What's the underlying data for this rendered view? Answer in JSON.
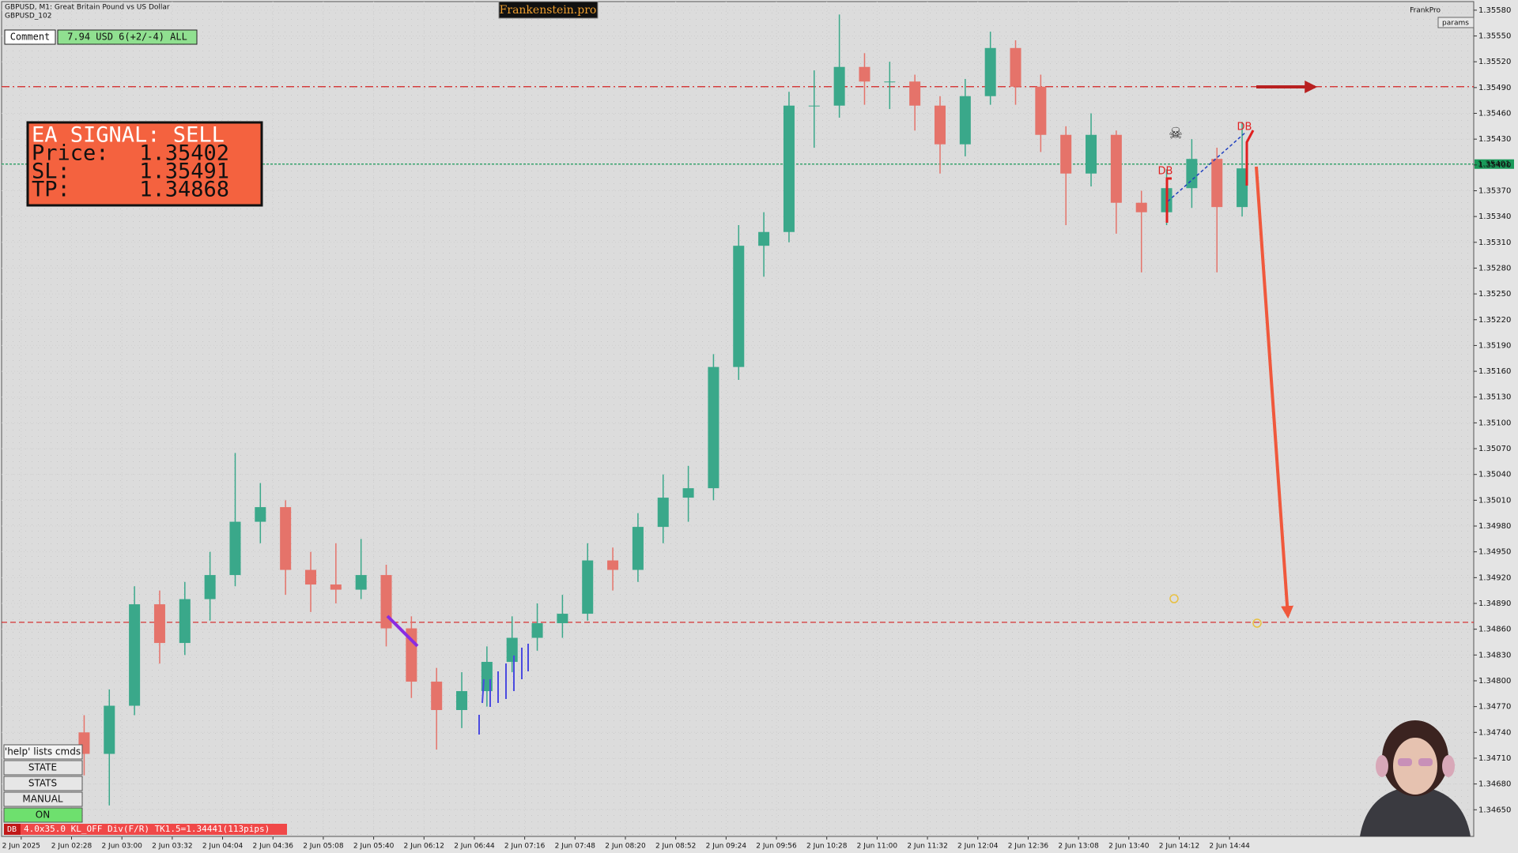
{
  "header": {
    "symbol_line": "GBPUSD, M1:  Great Britain Pound vs US Dollar",
    "account_line": "GBPUSD_102",
    "brand": "Frankenstein.pro",
    "user": "FrankPro",
    "params_button": "params"
  },
  "comment": {
    "label": "Comment",
    "value": "7.94 USD 6(+2/-4) ALL"
  },
  "signal": {
    "title": "EA SIGNAL: SELL",
    "rows": [
      [
        "Price:",
        "1.35402"
      ],
      [
        "SL:",
        "1.35491"
      ],
      [
        "TP:",
        "1.34868"
      ]
    ]
  },
  "buttons": [
    "'help' lists cmds",
    "STATE",
    "STATS",
    "MANUAL",
    "ON"
  ],
  "status": {
    "tag": "DB",
    "text": "4.0x35.0 KL_OFF Div(F/R) TK1.5=1.34441(113pips)"
  },
  "chart_data": {
    "type": "candlestick",
    "grid": true,
    "up_color": "#3aa88a",
    "down_color": "#e5736a",
    "annotations": [
      "DB",
      "DB"
    ],
    "xlim": [
      -3.28,
      55.2
    ],
    "ylim": [
      1.34619,
      1.3559
    ],
    "xticks": [
      {
        "value": -2.5,
        "label": "2 Jun 2025"
      },
      {
        "value": -0.5,
        "label": "2 Jun 02:28"
      },
      {
        "value": 1.5,
        "label": "2 Jun 03:00"
      },
      {
        "value": 3.5,
        "label": "2 Jun 03:32"
      },
      {
        "value": 5.5,
        "label": "2 Jun 04:04"
      },
      {
        "value": 7.5,
        "label": "2 Jun 04:36"
      },
      {
        "value": 9.5,
        "label": "2 Jun 05:08"
      },
      {
        "value": 11.5,
        "label": "2 Jun 05:40"
      },
      {
        "value": 13.5,
        "label": "2 Jun 06:12"
      },
      {
        "value": 15.5,
        "label": "2 Jun 06:44"
      },
      {
        "value": 17.5,
        "label": "2 Jun 07:16"
      },
      {
        "value": 19.5,
        "label": "2 Jun 07:48"
      },
      {
        "value": 21.5,
        "label": "2 Jun 08:20"
      },
      {
        "value": 23.5,
        "label": "2 Jun 08:52"
      },
      {
        "value": 25.5,
        "label": "2 Jun 09:24"
      },
      {
        "value": 27.5,
        "label": "2 Jun 09:56"
      },
      {
        "value": 29.5,
        "label": "2 Jun 10:28"
      },
      {
        "value": 31.5,
        "label": "2 Jun 11:00"
      },
      {
        "value": 33.5,
        "label": "2 Jun 11:32"
      },
      {
        "value": 35.5,
        "label": "2 Jun 12:04"
      },
      {
        "value": 37.5,
        "label": "2 Jun 12:36"
      },
      {
        "value": 39.5,
        "label": "2 Jun 13:08"
      },
      {
        "value": 41.5,
        "label": "2 Jun 13:40"
      },
      {
        "value": 43.5,
        "label": "2 Jun 14:12"
      },
      {
        "value": 45.5,
        "label": "2 Jun 14:44"
      }
    ],
    "yticks": [
      {
        "value": 1.3558,
        "label": "1.35580"
      },
      {
        "value": 1.3555,
        "label": "1.35550"
      },
      {
        "value": 1.3552,
        "label": "1.35520"
      },
      {
        "value": 1.3549,
        "label": "1.35490"
      },
      {
        "value": 1.3546,
        "label": "1.35460"
      },
      {
        "value": 1.3543,
        "label": "1.35430"
      },
      {
        "value": 1.354,
        "label": "1.35400"
      },
      {
        "value": 1.3537,
        "label": "1.35370"
      },
      {
        "value": 1.3534,
        "label": "1.35340"
      },
      {
        "value": 1.3531,
        "label": "1.35310"
      },
      {
        "value": 1.3528,
        "label": "1.35280"
      },
      {
        "value": 1.3525,
        "label": "1.35250"
      },
      {
        "value": 1.3522,
        "label": "1.35220"
      },
      {
        "value": 1.3519,
        "label": "1.35190"
      },
      {
        "value": 1.3516,
        "label": "1.35160"
      },
      {
        "value": 1.3513,
        "label": "1.35130"
      },
      {
        "value": 1.351,
        "label": "1.35100"
      },
      {
        "value": 1.3507,
        "label": "1.35070"
      },
      {
        "value": 1.3504,
        "label": "1.35040"
      },
      {
        "value": 1.3501,
        "label": "1.35010"
      },
      {
        "value": 1.3498,
        "label": "1.34980"
      },
      {
        "value": 1.3495,
        "label": "1.34950"
      },
      {
        "value": 1.3492,
        "label": "1.34920"
      },
      {
        "value": 1.3489,
        "label": "1.34890"
      },
      {
        "value": 1.3486,
        "label": "1.34860"
      },
      {
        "value": 1.3483,
        "label": "1.34830"
      },
      {
        "value": 1.348,
        "label": "1.34800"
      },
      {
        "value": 1.3477,
        "label": "1.34770"
      },
      {
        "value": 1.3474,
        "label": "1.34740"
      },
      {
        "value": 1.3471,
        "label": "1.34710"
      },
      {
        "value": 1.3468,
        "label": "1.34680"
      },
      {
        "value": 1.3465,
        "label": "1.34650"
      }
    ],
    "levels": [
      {
        "value": 1.35491,
        "color": "#d42020",
        "style": "dashdot"
      },
      {
        "value": 1.35401,
        "color": "#1a9a5a",
        "style": "dotted",
        "label": "1.35401"
      },
      {
        "value": 1.34868,
        "color": "#d42020",
        "style": "dashed"
      }
    ],
    "open": [
      1.3474,
      1.34715,
      1.34771,
      1.34889,
      1.34844,
      1.34895,
      1.34923,
      1.34985,
      1.35002,
      1.34929,
      1.34912,
      1.34906,
      1.34923,
      1.34861,
      1.34799,
      1.34766,
      1.34788,
      1.34822,
      1.3485,
      1.34867,
      1.34878,
      1.3494,
      1.34929,
      1.34979,
      1.35013,
      1.35024,
      1.35165,
      1.35306,
      1.35322,
      1.35469,
      1.35469,
      1.35514,
      1.35497,
      1.35497,
      1.35469,
      1.35424,
      1.3548,
      1.35536,
      1.35491,
      1.35435,
      1.3539,
      1.35435,
      1.35356,
      1.35345,
      1.35373,
      1.35407,
      1.35351
    ],
    "high": [
      1.3476,
      1.3479,
      1.3491,
      1.34905,
      1.34915,
      1.3495,
      1.35065,
      1.3503,
      1.3501,
      1.3495,
      1.3496,
      1.34965,
      1.34935,
      1.34875,
      1.34815,
      1.3481,
      1.3484,
      1.34875,
      1.3489,
      1.349,
      1.3496,
      1.34955,
      1.34995,
      1.3504,
      1.3505,
      1.3518,
      1.3533,
      1.35345,
      1.35485,
      1.3551,
      1.35575,
      1.3553,
      1.3552,
      1.35505,
      1.3548,
      1.355,
      1.35555,
      1.35545,
      1.35505,
      1.35445,
      1.3546,
      1.3544,
      1.3537,
      1.35395,
      1.3543,
      1.3542,
      1.3545
    ],
    "low": [
      1.3469,
      1.34655,
      1.3476,
      1.3482,
      1.3483,
      1.3487,
      1.3491,
      1.3496,
      1.349,
      1.3488,
      1.3489,
      1.34895,
      1.3484,
      1.3478,
      1.3472,
      1.34745,
      1.3477,
      1.3481,
      1.34835,
      1.3485,
      1.3487,
      1.34905,
      1.34915,
      1.3496,
      1.34985,
      1.3501,
      1.3515,
      1.3527,
      1.3531,
      1.3542,
      1.35455,
      1.3547,
      1.35465,
      1.3544,
      1.3539,
      1.3541,
      1.3547,
      1.3547,
      1.35415,
      1.3533,
      1.35375,
      1.3532,
      1.35275,
      1.3533,
      1.3535,
      1.35275,
      1.3534
    ],
    "close": [
      1.34715,
      1.34771,
      1.34889,
      1.34844,
      1.34895,
      1.34923,
      1.34985,
      1.35002,
      1.34929,
      1.34912,
      1.34906,
      1.34923,
      1.34861,
      1.34799,
      1.34766,
      1.34788,
      1.34822,
      1.3485,
      1.34867,
      1.34878,
      1.3494,
      1.34929,
      1.34979,
      1.35013,
      1.35024,
      1.35165,
      1.35306,
      1.35322,
      1.35469,
      1.35469,
      1.35514,
      1.35497,
      1.35497,
      1.35469,
      1.35424,
      1.3548,
      1.35536,
      1.35491,
      1.35435,
      1.3539,
      1.35435,
      1.35356,
      1.35345,
      1.35373,
      1.35407,
      1.35351,
      1.35396
    ]
  }
}
